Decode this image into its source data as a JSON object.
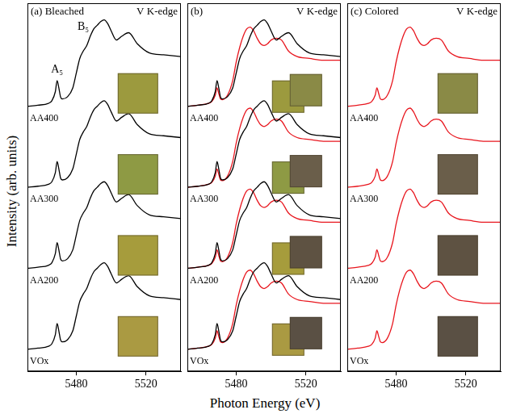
{
  "y_label": "Intensity (arb. units)",
  "x_label": "Photon Energy (eV)",
  "chart_data": [
    {
      "type": "line",
      "title": "(a) Bleached",
      "subtitle": "V K-edge",
      "x": [
        5452,
        5458,
        5464,
        5466,
        5468,
        5469,
        5470,
        5471,
        5472,
        5475,
        5478,
        5480,
        5482,
        5484,
        5486,
        5488,
        5490,
        5492,
        5494,
        5496,
        5498,
        5500,
        5503,
        5506,
        5510,
        5515,
        5522,
        5530,
        5540
      ],
      "xlim": [
        5452,
        5540
      ],
      "xticks": [
        5480,
        5520
      ],
      "ylim": [
        0,
        100
      ],
      "tick_labels": "x",
      "annotations": [
        {
          "text": "A₅",
          "x": 5469,
          "y": 80.5
        },
        {
          "text": "B₅",
          "x": 5484,
          "y": 92
        }
      ],
      "series": [
        {
          "name": "AA400",
          "color": "#000000",
          "values": [
            72,
            72.3,
            72.8,
            73.5,
            76,
            79,
            77,
            74.5,
            74,
            74.6,
            77,
            81,
            85,
            87,
            88.5,
            91,
            93,
            94,
            95,
            95.5,
            94.5,
            92.5,
            90,
            91,
            92,
            89,
            86.5,
            86,
            85.5
          ]
        },
        {
          "name": "AA300",
          "color": "#000000",
          "values": [
            50,
            50.3,
            50.8,
            51.5,
            54,
            57,
            55,
            52.5,
            52,
            52.6,
            55,
            59,
            63,
            65,
            66.5,
            69,
            71,
            72,
            73,
            73.5,
            72.5,
            70.5,
            68,
            69,
            70,
            67,
            64.5,
            64,
            63.5
          ]
        },
        {
          "name": "AA200",
          "color": "#000000",
          "values": [
            28,
            28.3,
            28.8,
            29.5,
            32,
            35,
            33,
            30.5,
            30,
            30.6,
            33,
            37,
            41,
            43,
            44.5,
            47,
            49,
            50,
            51,
            51.5,
            50.5,
            48.5,
            46,
            47,
            48,
            45,
            42.5,
            42,
            41.5
          ]
        },
        {
          "name": "VOx",
          "color": "#000000",
          "values": [
            6,
            6.3,
            6.8,
            7.5,
            10,
            13,
            11,
            8.5,
            8,
            8.6,
            11,
            15,
            19,
            21,
            22.5,
            25,
            27,
            28,
            29,
            29.5,
            28.5,
            26.5,
            24,
            25,
            26,
            23,
            20.5,
            20,
            19.5
          ]
        }
      ]
    },
    {
      "type": "line",
      "title": "(b)",
      "subtitle": "V K-edge",
      "x": [
        5452,
        5458,
        5464,
        5466,
        5468,
        5469,
        5470,
        5471,
        5472,
        5475,
        5478,
        5480,
        5482,
        5484,
        5486,
        5488,
        5490,
        5492,
        5494,
        5496,
        5498,
        5500,
        5503,
        5506,
        5510,
        5515,
        5522,
        5530,
        5540
      ],
      "xlim": [
        5452,
        5540
      ],
      "xticks": [
        5480,
        5520
      ],
      "ylim": [
        0,
        100
      ],
      "tick_labels": "x",
      "series": [
        {
          "name": "AA400",
          "color": "#000000",
          "values": [
            72,
            72.3,
            72.8,
            73.5,
            76,
            79,
            77,
            74.5,
            74,
            74.6,
            77,
            81,
            85,
            87,
            88.5,
            91,
            93,
            94,
            95,
            95.5,
            94.5,
            92.5,
            90,
            91,
            92,
            89,
            86.5,
            86,
            85.5
          ]
        },
        {
          "name": "AA400",
          "color": "#e8161e",
          "values": [
            72,
            72.3,
            72.8,
            73.3,
            75,
            77,
            75.5,
            74,
            73.8,
            75,
            79,
            84,
            88,
            91,
            93,
            93.5,
            92.5,
            90.5,
            89,
            88.5,
            89,
            90,
            90.5,
            90,
            87,
            85.5,
            85,
            84.5,
            84.5
          ]
        },
        {
          "name": "AA300",
          "color": "#000000",
          "values": [
            50,
            50.3,
            50.8,
            51.5,
            54,
            57,
            55,
            52.5,
            52,
            52.6,
            55,
            59,
            63,
            65,
            66.5,
            69,
            71,
            72,
            73,
            73.5,
            72.5,
            70.5,
            68,
            69,
            70,
            67,
            64.5,
            64,
            63.5
          ]
        },
        {
          "name": "AA300",
          "color": "#e8161e",
          "values": [
            50,
            50.3,
            50.8,
            51.3,
            53,
            55,
            53.5,
            52,
            51.8,
            53,
            57,
            62,
            66,
            69,
            71,
            71.5,
            70.5,
            68.5,
            67,
            66.5,
            67,
            68,
            68.5,
            68,
            65,
            63.5,
            63,
            62.5,
            62.5
          ]
        },
        {
          "name": "AA200",
          "color": "#000000",
          "values": [
            28,
            28.3,
            28.8,
            29.5,
            32,
            35,
            33,
            30.5,
            30,
            30.6,
            33,
            37,
            41,
            43,
            44.5,
            47,
            49,
            50,
            51,
            51.5,
            50.5,
            48.5,
            46,
            47,
            48,
            45,
            42.5,
            42,
            41.5
          ]
        },
        {
          "name": "AA200",
          "color": "#e8161e",
          "values": [
            28,
            28.3,
            28.8,
            29.3,
            31,
            33,
            31.5,
            30,
            29.8,
            31,
            35,
            40,
            44,
            47,
            49,
            49.5,
            48.5,
            46.5,
            45,
            44.5,
            45,
            46,
            46.5,
            46,
            43,
            41.5,
            41,
            40.5,
            40.5
          ]
        },
        {
          "name": "VOx",
          "color": "#000000",
          "values": [
            6,
            6.3,
            6.8,
            7.5,
            10,
            13,
            11,
            8.5,
            8,
            8.6,
            11,
            15,
            19,
            21,
            22.5,
            25,
            27,
            28,
            29,
            29.5,
            28.5,
            26.5,
            24,
            25,
            26,
            23,
            20.5,
            20,
            19.5
          ]
        },
        {
          "name": "VOx",
          "color": "#e8161e",
          "values": [
            6,
            6.3,
            6.8,
            7.3,
            9,
            11,
            9.5,
            8,
            7.8,
            9,
            13,
            18,
            22,
            25,
            27,
            27.5,
            26.5,
            24.5,
            23,
            22.5,
            23,
            24,
            24.5,
            24,
            21,
            19.5,
            19,
            18.5,
            18.5
          ]
        }
      ]
    },
    {
      "type": "line",
      "title": "(c) Colored",
      "subtitle": "V K-edge",
      "x": [
        5452,
        5458,
        5464,
        5466,
        5468,
        5469,
        5470,
        5471,
        5472,
        5475,
        5478,
        5480,
        5482,
        5484,
        5486,
        5488,
        5490,
        5492,
        5494,
        5496,
        5498,
        5500,
        5503,
        5506,
        5510,
        5515,
        5522,
        5530,
        5540
      ],
      "xlim": [
        5452,
        5540
      ],
      "xticks": [
        5480,
        5520
      ],
      "ylim": [
        0,
        100
      ],
      "tick_labels": "x",
      "series": [
        {
          "name": "AA400",
          "color": "#e8161e",
          "values": [
            72,
            72.3,
            72.8,
            73.3,
            75,
            77,
            75.5,
            74,
            73.8,
            75,
            79,
            84,
            88,
            91,
            93,
            93.5,
            92.5,
            90.5,
            89,
            88.5,
            89,
            90,
            90.5,
            90,
            87,
            85.5,
            85,
            84.5,
            84.5
          ]
        },
        {
          "name": "AA300",
          "color": "#e8161e",
          "values": [
            50,
            50.3,
            50.8,
            51.3,
            53,
            55,
            53.5,
            52,
            51.8,
            53,
            57,
            62,
            66,
            69,
            71,
            71.5,
            70.5,
            68.5,
            67,
            66.5,
            67,
            68,
            68.5,
            68,
            65,
            63.5,
            63,
            62.5,
            62.5
          ]
        },
        {
          "name": "AA200",
          "color": "#e8161e",
          "values": [
            28,
            28.3,
            28.8,
            29.3,
            31,
            33,
            31.5,
            30,
            29.8,
            31,
            35,
            40,
            44,
            47,
            49,
            49.5,
            48.5,
            46.5,
            45,
            44.5,
            45,
            46,
            46.5,
            46,
            43,
            41.5,
            41,
            40.5,
            40.5
          ]
        },
        {
          "name": "VOx",
          "color": "#e8161e",
          "values": [
            6,
            6.3,
            6.8,
            7.3,
            9,
            11,
            9.5,
            8,
            7.8,
            9,
            13,
            18,
            22,
            25,
            27,
            27.5,
            26.5,
            24.5,
            23,
            22.5,
            23,
            24,
            24.5,
            24,
            21,
            19.5,
            19,
            18.5,
            18.5
          ]
        }
      ]
    }
  ]
}
